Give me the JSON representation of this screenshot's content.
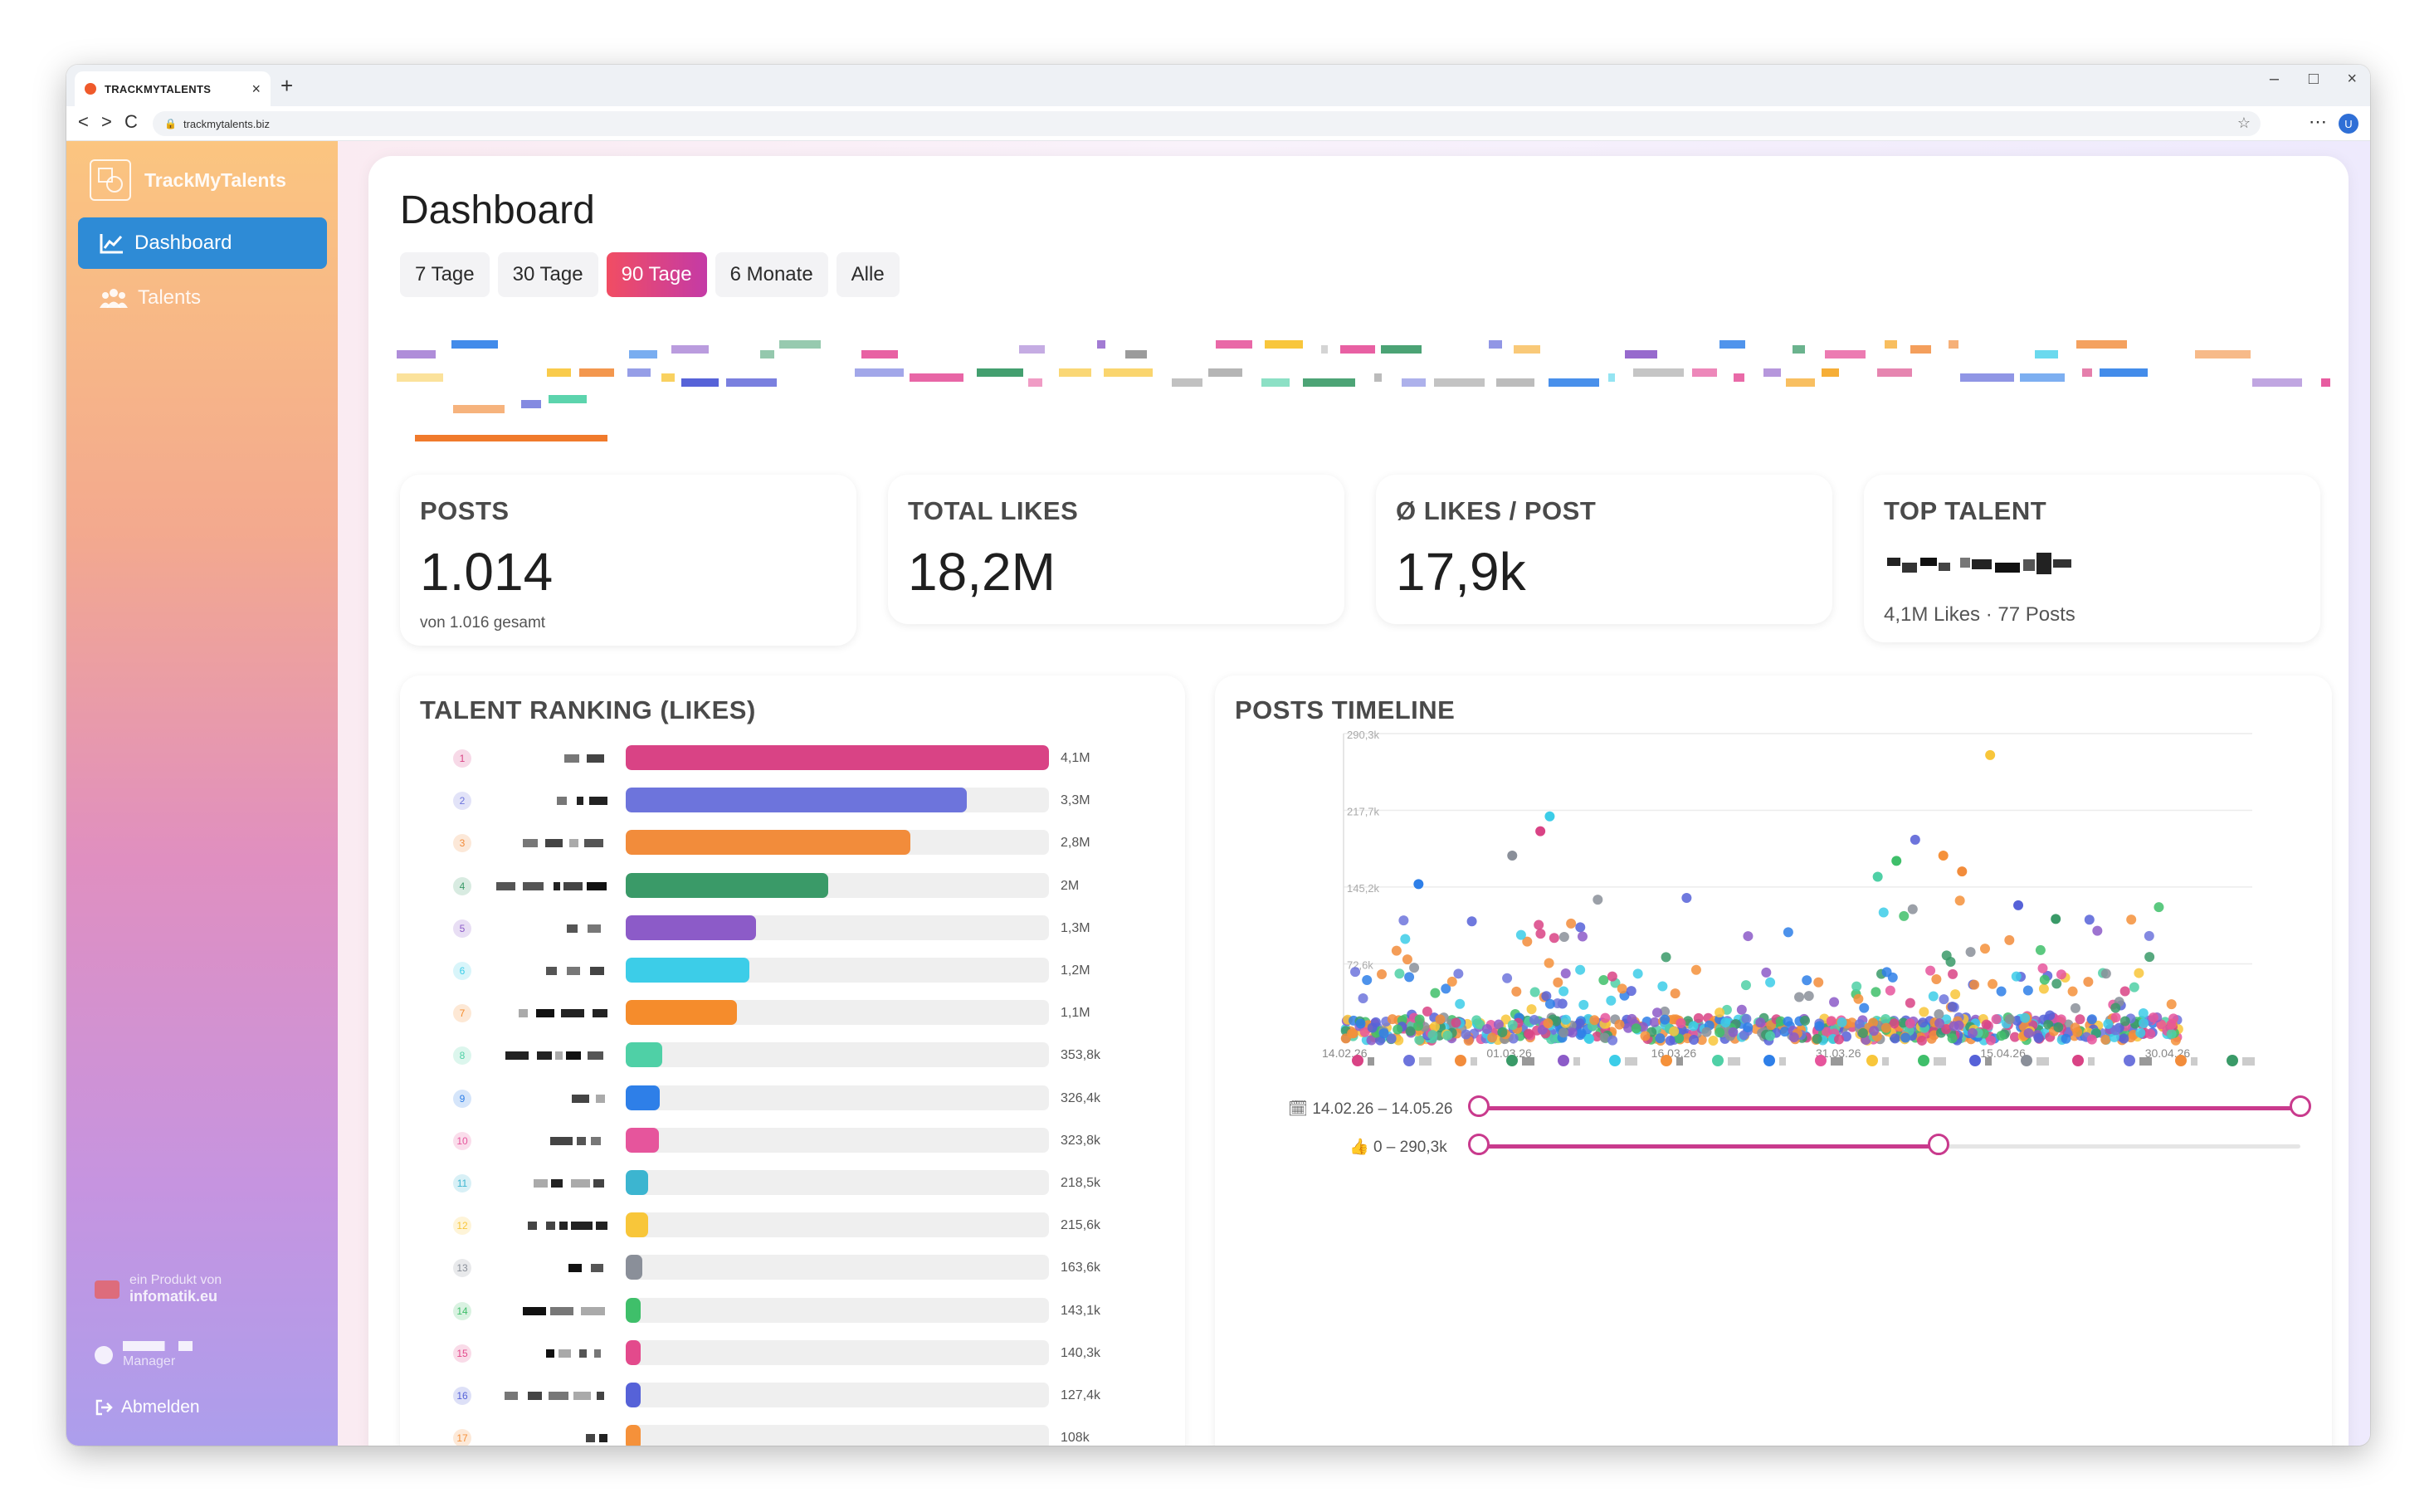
{
  "browser": {
    "tab_title": "TRACKMYTALENTS",
    "tab_close": "×",
    "new_tab": "+",
    "url": "trackmytalents.biz",
    "nav_back": "<",
    "nav_forward": ">",
    "nav_reload": "C",
    "minimize": "–",
    "maximize": "□",
    "close": "×",
    "menu": "⋯",
    "profile_initial": "U"
  },
  "sidebar": {
    "brand": "TrackMyTalents",
    "items": [
      {
        "label": "Dashboard",
        "icon": "chart-line-icon",
        "active": true
      },
      {
        "label": "Talents",
        "icon": "users-icon",
        "active": false
      }
    ],
    "product_prefix": "ein Produkt von",
    "product_name": "infomatik.eu",
    "user_role": "Manager",
    "logout": "Abmelden"
  },
  "main": {
    "title": "Dashboard",
    "ranges": [
      "7 Tage",
      "30 Tage",
      "90 Tage",
      "6 Monate",
      "Alle"
    ],
    "active_range": "90 Tage"
  },
  "stats": {
    "posts": {
      "label": "POSTS",
      "value": "1.014",
      "sub": "von 1.016 gesamt"
    },
    "likes": {
      "label": "TOTAL LIKES",
      "value": "18,2M"
    },
    "avg": {
      "label": "Ø LIKES / POST",
      "value": "17,9k"
    },
    "top": {
      "label": "TOP TALENT",
      "sub": "4,1M Likes · 77 Posts"
    }
  },
  "ranking": {
    "title": "TALENT RANKING (LIKES)",
    "rows": [
      {
        "rank": "1",
        "value": "4,1M",
        "fraction": 1.0,
        "color": "#d94385"
      },
      {
        "rank": "2",
        "value": "3,3M",
        "fraction": 0.805,
        "color": "#6d74dc"
      },
      {
        "rank": "3",
        "value": "2,8M",
        "fraction": 0.673,
        "color": "#f28c3b"
      },
      {
        "rank": "4",
        "value": "2M",
        "fraction": 0.478,
        "color": "#3a9a68"
      },
      {
        "rank": "5",
        "value": "1,3M",
        "fraction": 0.307,
        "color": "#8c5bc8"
      },
      {
        "rank": "6",
        "value": "1,2M",
        "fraction": 0.293,
        "color": "#3ccde8"
      },
      {
        "rank": "7",
        "value": "1,1M",
        "fraction": 0.263,
        "color": "#f58c2c"
      },
      {
        "rank": "8",
        "value": "353,8k",
        "fraction": 0.086,
        "color": "#4fd0a6"
      },
      {
        "rank": "9",
        "value": "326,4k",
        "fraction": 0.08,
        "color": "#2e7fe8"
      },
      {
        "rank": "10",
        "value": "323,8k",
        "fraction": 0.079,
        "color": "#e6559c"
      },
      {
        "rank": "11",
        "value": "218,5k",
        "fraction": 0.053,
        "color": "#3cb5d0"
      },
      {
        "rank": "12",
        "value": "215,6k",
        "fraction": 0.053,
        "color": "#f8c63a"
      },
      {
        "rank": "13",
        "value": "163,6k",
        "fraction": 0.04,
        "color": "#8a8f99"
      },
      {
        "rank": "14",
        "value": "143,1k",
        "fraction": 0.035,
        "color": "#3fbf6a"
      },
      {
        "rank": "15",
        "value": "140,3k",
        "fraction": 0.034,
        "color": "#e34a8c"
      },
      {
        "rank": "16",
        "value": "127,4k",
        "fraction": 0.031,
        "color": "#5662d8"
      },
      {
        "rank": "17",
        "value": "108k",
        "fraction": 0.026,
        "color": "#f5913a"
      }
    ]
  },
  "timeline": {
    "title": "POSTS TIMELINE",
    "date_range": "14.02.26 – 14.05.26",
    "likes_range": "0 – 290,3k",
    "date_icon": "🗓",
    "likes_icon": "👍"
  },
  "chart_data": {
    "type": "scatter",
    "x_ticks": [
      "14.02.26",
      "01.03.26",
      "16.03.26",
      "31.03.26",
      "15.04.26",
      "30.04.26"
    ],
    "y_ticks": [
      "290,3k",
      "217,7k",
      "145,2k",
      "72,6k"
    ],
    "ylim": [
      0,
      290300
    ],
    "notable_points": [
      {
        "x": "07.03.26",
        "y": 198000
      },
      {
        "x": "08.03.26",
        "y": 212000
      },
      {
        "x": "24.04.26",
        "y": 270000
      },
      {
        "x": "16.04.26",
        "y": 190000
      },
      {
        "x": "19.04.26",
        "y": 175000
      },
      {
        "x": "14.04.26",
        "y": 170000
      },
      {
        "x": "21.04.26",
        "y": 160000
      },
      {
        "x": "12.04.26",
        "y": 155000
      },
      {
        "x": "27.04.26",
        "y": 128000
      },
      {
        "x": "01.05.26",
        "y": 115000
      },
      {
        "x": "22.02.26",
        "y": 148000
      },
      {
        "x": "04.03.26",
        "y": 175000
      }
    ],
    "slider_date_fraction": [
      0.0,
      1.0
    ],
    "slider_likes_fraction": [
      0.0,
      0.56
    ],
    "grid": true
  },
  "colors": {
    "accent_blue": "#2e8bd6",
    "accent_gradient_start": "#f14d63",
    "accent_gradient_end": "#c43aa6",
    "slider": "#c93a8d"
  }
}
